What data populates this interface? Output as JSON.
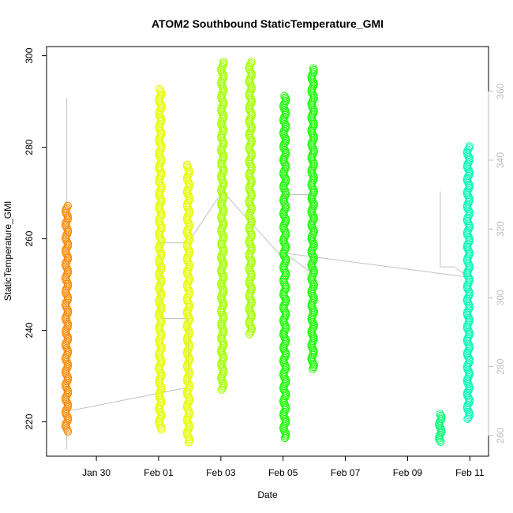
{
  "chart_data": {
    "type": "scatter",
    "title": "ATOM2 Southbound StaticTemperature_GMI",
    "xlabel": "Date",
    "ylabel": "StaticTemperature_GMI",
    "x_ticks": [
      "Jan 30",
      "Feb 01",
      "Feb 03",
      "Feb 05",
      "Feb 07",
      "Feb 09",
      "Feb 11"
    ],
    "x_tick_days": [
      -2,
      0,
      2,
      4,
      6,
      8,
      10
    ],
    "xlim_days": [
      -3.6,
      10.6
    ],
    "ylim": [
      212.5,
      302
    ],
    "y_ticks": [
      220,
      240,
      260,
      280,
      300
    ],
    "y2lim": [
      254,
      373
    ],
    "y2_ticks": [
      260,
      280,
      300,
      320,
      340,
      360
    ],
    "grid": false,
    "legend": "none",
    "colors": {
      "axis": "#000000",
      "secondary_axis": "#bdbdbd",
      "path": "#c2c2c2"
    },
    "series": [
      {
        "color": "#ff8c00",
        "segments": [
          {
            "day": -2.95,
            "ymin": 217,
            "ymax": 268
          }
        ]
      },
      {
        "color": "#e6ff00",
        "segments": [
          {
            "day": 0.05,
            "ymin": 217.5,
            "ymax": 293.5
          },
          {
            "day": 0.95,
            "ymin": 214.5,
            "ymax": 277
          }
        ]
      },
      {
        "color": "#a6ff00",
        "segments": [
          {
            "day": 2.05,
            "ymin": 226,
            "ymax": 299.5
          },
          {
            "day": 2.95,
            "ymin": 238,
            "ymax": 299.5
          }
        ]
      },
      {
        "color": "#1aff00",
        "segments": [
          {
            "day": 4.05,
            "ymin": 215.5,
            "ymax": 292
          },
          {
            "day": 4.95,
            "ymin": 230.5,
            "ymax": 298
          }
        ]
      },
      {
        "color": "#00ff70",
        "segments": [
          {
            "day": 9.05,
            "ymin": 214.5,
            "ymax": 222.5
          }
        ]
      },
      {
        "color": "#00ffb6",
        "segments": [
          {
            "day": 9.95,
            "ymin": 219.5,
            "ymax": 281
          }
        ]
      }
    ],
    "path": [
      {
        "day": -2.95,
        "y2": 358
      },
      {
        "day": -2.95,
        "y2": 256
      },
      {
        "day": -2.95,
        "y2": 267
      },
      {
        "day": 0.95,
        "y2": 274
      },
      {
        "day": 0.95,
        "y2": 294
      },
      {
        "day": 0.05,
        "y2": 294
      },
      {
        "day": 0.05,
        "y2": 316
      },
      {
        "day": 0.95,
        "y2": 316
      },
      {
        "day": 0.95,
        "y2": 316
      },
      {
        "day": 2.05,
        "y2": 331
      },
      {
        "day": 4.05,
        "y2": 311
      },
      {
        "day": 4.05,
        "y2": 353
      },
      {
        "day": 4.05,
        "y2": 330
      },
      {
        "day": 4.95,
        "y2": 330
      },
      {
        "day": 4.95,
        "y2": 307
      },
      {
        "day": 4.05,
        "y2": 313
      },
      {
        "day": 9.95,
        "y2": 306
      },
      {
        "day": 9.5,
        "y2": 309
      },
      {
        "day": 9.05,
        "y2": 309
      },
      {
        "day": 9.05,
        "y2": 331
      }
    ]
  }
}
